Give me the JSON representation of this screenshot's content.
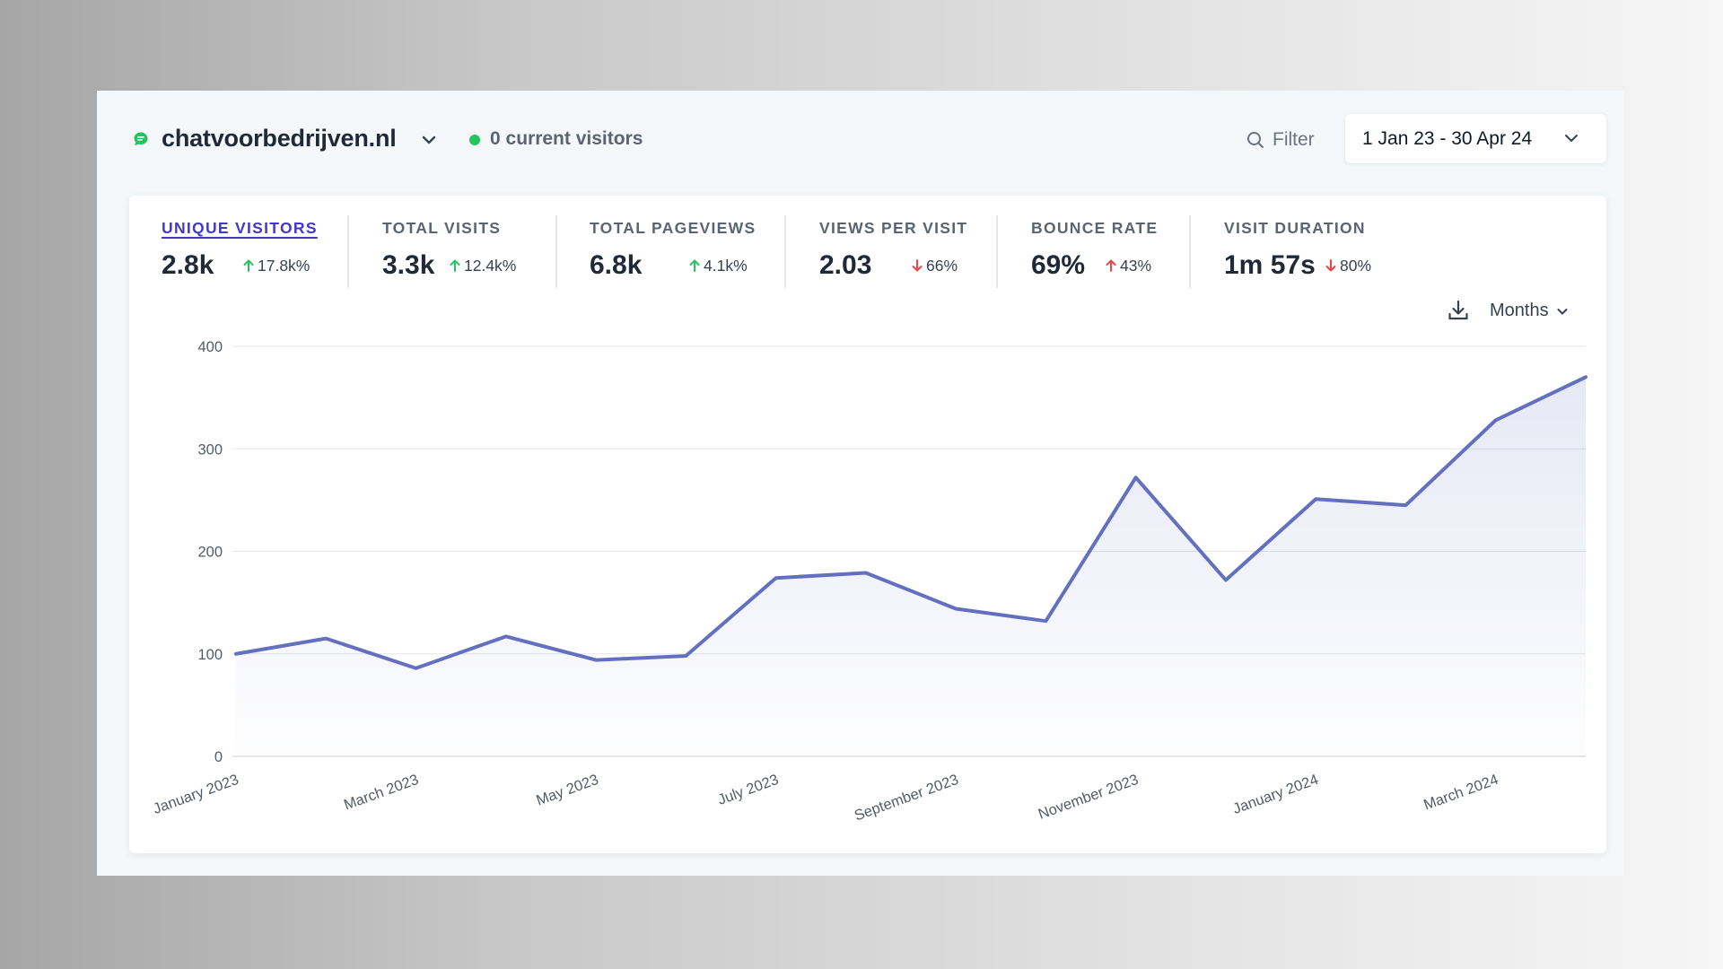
{
  "header": {
    "site_name": "chatvoorbedrijven.nl",
    "site_icon": "chat-bubble-icon",
    "current_visitors": "0 current visitors",
    "filter_label": "Filter",
    "date_range": "1 Jan 23 - 30 Apr 24"
  },
  "stats": [
    {
      "label": "UNIQUE VISITORS",
      "value": "2.8k",
      "change": "17.8k%",
      "direction": "up",
      "active": true
    },
    {
      "label": "TOTAL VISITS",
      "value": "3.3k",
      "change": "12.4k%",
      "direction": "up"
    },
    {
      "label": "TOTAL PAGEVIEWS",
      "value": "6.8k",
      "change": "4.1k%",
      "direction": "up"
    },
    {
      "label": "VIEWS PER VISIT",
      "value": "2.03",
      "change": "66%",
      "direction": "down"
    },
    {
      "label": "BOUNCE RATE",
      "value": "69%",
      "change": "43%",
      "direction": "up-bad"
    },
    {
      "label": "VISIT DURATION",
      "value": "1m 57s",
      "change": "80%",
      "direction": "down"
    }
  ],
  "controls": {
    "interval": "Months"
  },
  "colors": {
    "up": "#22c55e",
    "down": "#ef4444",
    "line": "#6370c0",
    "active_tab": "#4338ca",
    "live": "#22c55e"
  },
  "chart_data": {
    "type": "area",
    "x": [
      "January 2023",
      "February 2023",
      "March 2023",
      "April 2023",
      "May 2023",
      "June 2023",
      "July 2023",
      "August 2023",
      "September 2023",
      "October 2023",
      "November 2023",
      "December 2023",
      "January 2024",
      "February 2024",
      "March 2024",
      "April 2024"
    ],
    "x_tick_labels": [
      "January 2023",
      "March 2023",
      "May 2023",
      "July 2023",
      "September 2023",
      "November 2023",
      "January 2024",
      "March 2024"
    ],
    "values": [
      100,
      115,
      86,
      117,
      94,
      98,
      174,
      179,
      144,
      132,
      272,
      172,
      251,
      245,
      328,
      370
    ],
    "ylim": [
      0,
      400
    ],
    "yticks": [
      0,
      100,
      200,
      300,
      400
    ],
    "grid": true,
    "legend": "none"
  }
}
